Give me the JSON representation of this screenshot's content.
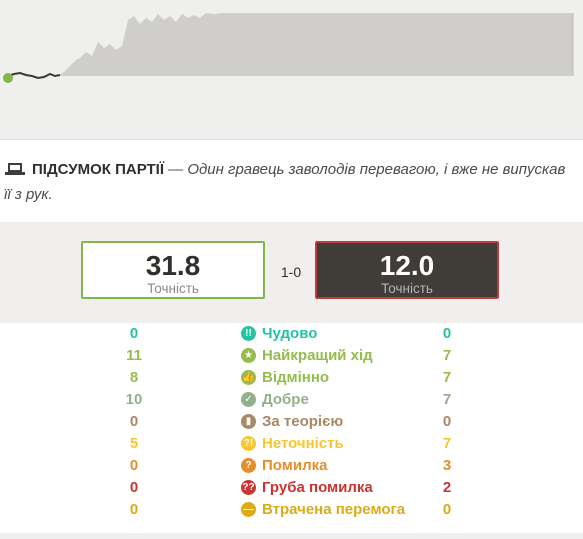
{
  "summary": {
    "title": "ПІДСУМОК ПАРТІЇ",
    "dash": "—",
    "text": "Один гравець заволодів перевагою, і вже не випускав її з рук."
  },
  "accuracy": {
    "white_value": "31.8",
    "white_label": "Точність",
    "black_value": "12.0",
    "black_label": "Точність",
    "result": "1-0"
  },
  "rows": [
    {
      "label": "Чудово",
      "white": "0",
      "black": "0",
      "color": "#26c2a3",
      "icon": "brilliant-icon",
      "glyph": "!!"
    },
    {
      "label": "Найкращий хід",
      "white": "11",
      "black": "7",
      "color": "#96bc4b",
      "icon": "best-move-icon",
      "glyph": "★"
    },
    {
      "label": "Відмінно",
      "white": "8",
      "black": "7",
      "color": "#96bc4b",
      "icon": "excellent-icon",
      "glyph": "👍"
    },
    {
      "label": "Добре",
      "white": "10",
      "black": "7",
      "color": "#96af8b",
      "icon": "good-icon",
      "glyph": "✓"
    },
    {
      "label": "За теорією",
      "white": "0",
      "black": "0",
      "color": "#a88865",
      "icon": "book-icon",
      "glyph": "▮"
    },
    {
      "label": "Неточність",
      "white": "5",
      "black": "7",
      "color": "#f7c631",
      "icon": "inaccuracy-icon",
      "glyph": "?!"
    },
    {
      "label": "Помилка",
      "white": "0",
      "black": "3",
      "color": "#e58f2a",
      "icon": "mistake-icon",
      "glyph": "?"
    },
    {
      "label": "Груба помилка",
      "white": "0",
      "black": "2",
      "color": "#ca3431",
      "icon": "blunder-icon",
      "glyph": "??"
    },
    {
      "label": "Втрачена перемога",
      "white": "0",
      "black": "0",
      "color": "#dbac16",
      "icon": "missed-win-icon",
      "glyph": "—"
    }
  ],
  "colors": {
    "white_border": "#81b64c",
    "black_border": "#c23b3b",
    "graph_fill": "#cfcecc"
  }
}
